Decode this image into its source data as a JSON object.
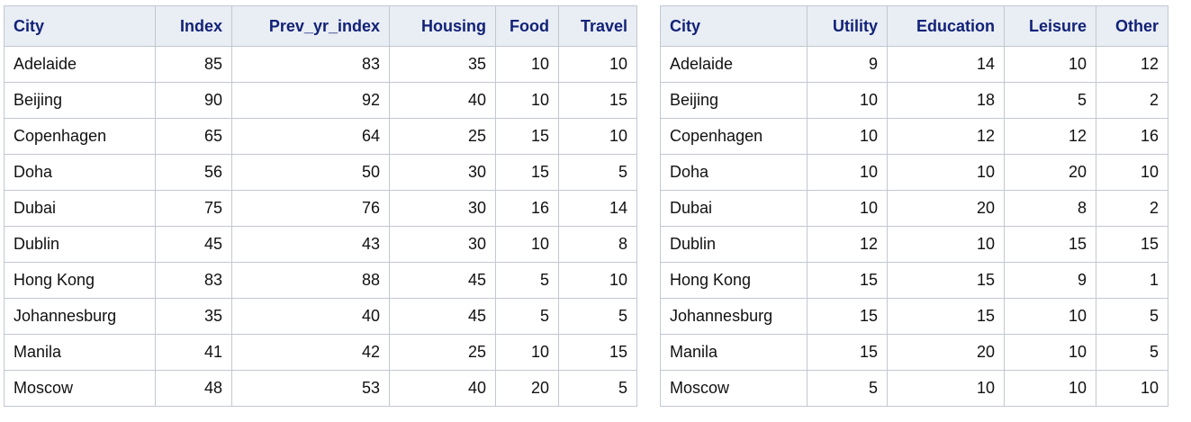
{
  "left_table": {
    "columns": [
      "City",
      "Index",
      "Prev_yr_index",
      "Housing",
      "Food",
      "Travel"
    ],
    "rows": [
      [
        "Adelaide",
        "85",
        "83",
        "35",
        "10",
        "10"
      ],
      [
        "Beijing",
        "90",
        "92",
        "40",
        "10",
        "15"
      ],
      [
        "Copenhagen",
        "65",
        "64",
        "25",
        "15",
        "10"
      ],
      [
        "Doha",
        "56",
        "50",
        "30",
        "15",
        "5"
      ],
      [
        "Dubai",
        "75",
        "76",
        "30",
        "16",
        "14"
      ],
      [
        "Dublin",
        "45",
        "43",
        "30",
        "10",
        "8"
      ],
      [
        "Hong Kong",
        "83",
        "88",
        "45",
        "5",
        "10"
      ],
      [
        "Johannesburg",
        "35",
        "40",
        "45",
        "5",
        "5"
      ],
      [
        "Manila",
        "41",
        "42",
        "25",
        "10",
        "15"
      ],
      [
        "Moscow",
        "48",
        "53",
        "40",
        "20",
        "5"
      ]
    ]
  },
  "right_table": {
    "columns": [
      "City",
      "Utility",
      "Education",
      "Leisure",
      "Other"
    ],
    "rows": [
      [
        "Adelaide",
        "9",
        "14",
        "10",
        "12"
      ],
      [
        "Beijing",
        "10",
        "18",
        "5",
        "2"
      ],
      [
        "Copenhagen",
        "10",
        "12",
        "12",
        "16"
      ],
      [
        "Doha",
        "10",
        "10",
        "20",
        "10"
      ],
      [
        "Dubai",
        "10",
        "20",
        "8",
        "2"
      ],
      [
        "Dublin",
        "12",
        "10",
        "15",
        "15"
      ],
      [
        "Hong Kong",
        "15",
        "15",
        "9",
        "1"
      ],
      [
        "Johannesburg",
        "15",
        "15",
        "10",
        "5"
      ],
      [
        "Manila",
        "15",
        "20",
        "10",
        "5"
      ],
      [
        "Moscow",
        "5",
        "10",
        "10",
        "10"
      ]
    ]
  },
  "colors": {
    "header_bg": "#e9edf4",
    "header_text": "#112277",
    "border": "#c2c8d2",
    "body_text": "#111111"
  }
}
